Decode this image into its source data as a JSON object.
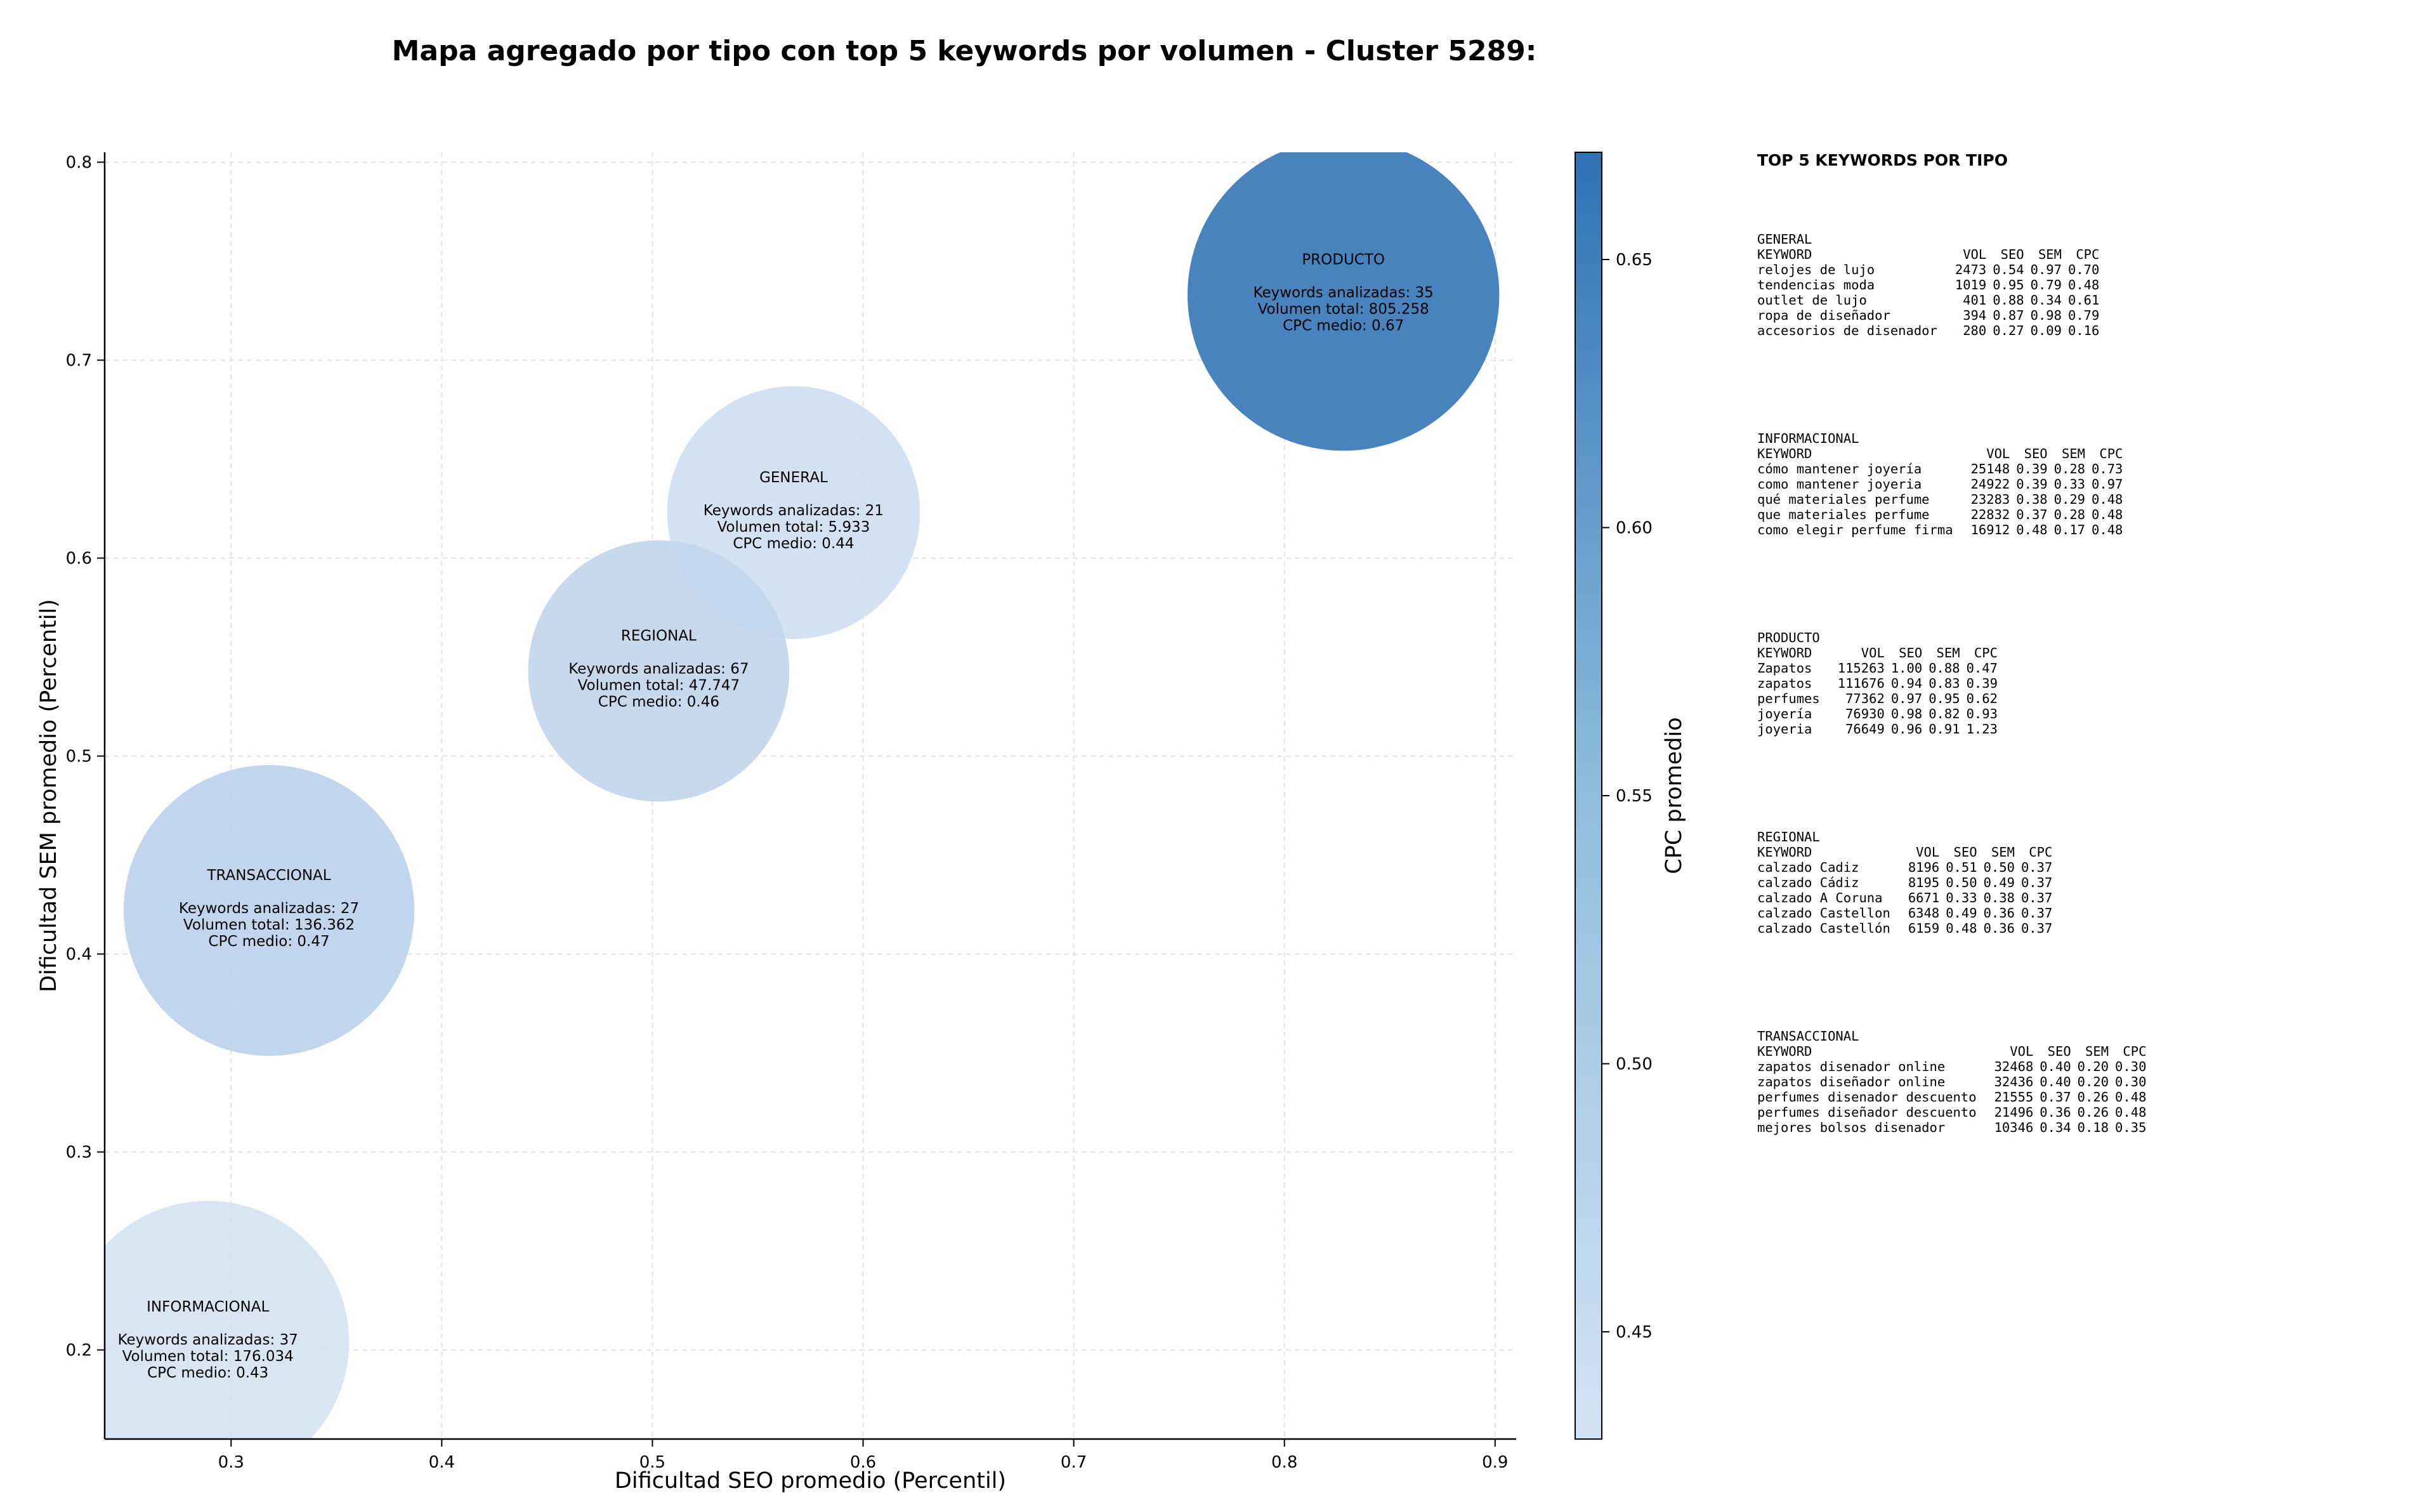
{
  "chart_data": {
    "type": "scatter",
    "title": "Mapa agregado por tipo con top 5 keywords por volumen - Cluster 5289:",
    "xlabel": "Dificultad SEO promedio (Percentil)",
    "ylabel": "Dificultad SEM promedio (Percentil)",
    "xlim": [
      0.24,
      0.91
    ],
    "ylim": [
      0.155,
      0.805
    ],
    "xticks": [
      "0.3",
      "0.4",
      "0.5",
      "0.6",
      "0.7",
      "0.8",
      "0.9"
    ],
    "yticks": [
      "0.2",
      "0.3",
      "0.4",
      "0.5",
      "0.6",
      "0.7",
      "0.8"
    ],
    "grid": true,
    "colorbar": {
      "label": "CPC promedio",
      "range": [
        0.43,
        0.67
      ],
      "ticks": [
        "0.45",
        "0.50",
        "0.55",
        "0.60",
        "0.65"
      ],
      "color_low": "#d3e3f3",
      "color_high": "#2f72b5"
    },
    "points": [
      {
        "name": "PRODUCTO",
        "x": 0.828,
        "y": 0.733,
        "keywords": "Keywords analizadas: 35",
        "volumen": "Volumen total: 805.258",
        "cpc_label": "CPC medio: 0.67",
        "cpc": 0.67,
        "radius": 0.074
      },
      {
        "name": "GENERAL",
        "x": 0.567,
        "y": 0.623,
        "keywords": "Keywords analizadas: 21",
        "volumen": "Volumen total: 5.933",
        "cpc_label": "CPC medio: 0.44",
        "cpc": 0.44,
        "radius": 0.06
      },
      {
        "name": "REGIONAL",
        "x": 0.503,
        "y": 0.543,
        "keywords": "Keywords analizadas: 67",
        "volumen": "Volumen total: 47.747",
        "cpc_label": "CPC medio: 0.46",
        "cpc": 0.46,
        "radius": 0.062
      },
      {
        "name": "TRANSACCIONAL",
        "x": 0.318,
        "y": 0.422,
        "keywords": "Keywords analizadas: 27",
        "volumen": "Volumen total: 136.362",
        "cpc_label": "CPC medio: 0.47",
        "cpc": 0.47,
        "radius": 0.069
      },
      {
        "name": "INFORMACIONAL",
        "x": 0.289,
        "y": 0.204,
        "keywords": "Keywords analizadas: 37",
        "volumen": "Volumen total: 176.034",
        "cpc_label": "CPC medio: 0.43",
        "cpc": 0.43,
        "radius": 0.067
      }
    ]
  },
  "panel": {
    "title": "TOP 5 KEYWORDS POR TIPO",
    "headers": [
      "KEYWORD",
      "VOL",
      "SEO",
      "SEM",
      "CPC"
    ],
    "groups": [
      {
        "name": "GENERAL",
        "rows": [
          [
            "relojes de lujo",
            "2473",
            "0.54",
            "0.97",
            "0.70"
          ],
          [
            "tendencias moda",
            "1019",
            "0.95",
            "0.79",
            "0.48"
          ],
          [
            "outlet de lujo",
            "401",
            "0.88",
            "0.34",
            "0.61"
          ],
          [
            "ropa de diseñador",
            "394",
            "0.87",
            "0.98",
            "0.79"
          ],
          [
            "accesorios de disenador",
            "280",
            "0.27",
            "0.09",
            "0.16"
          ]
        ]
      },
      {
        "name": "INFORMACIONAL",
        "rows": [
          [
            "cómo mantener joyería",
            "25148",
            "0.39",
            "0.28",
            "0.73"
          ],
          [
            "como mantener joyeria",
            "24922",
            "0.39",
            "0.33",
            "0.97"
          ],
          [
            "qué materiales perfume",
            "23283",
            "0.38",
            "0.29",
            "0.48"
          ],
          [
            "que materiales perfume",
            "22832",
            "0.37",
            "0.28",
            "0.48"
          ],
          [
            "como elegir perfume firma",
            "16912",
            "0.48",
            "0.17",
            "0.48"
          ]
        ]
      },
      {
        "name": "PRODUCTO",
        "rows": [
          [
            "Zapatos",
            "115263",
            "1.00",
            "0.88",
            "0.47"
          ],
          [
            "zapatos",
            "111676",
            "0.94",
            "0.83",
            "0.39"
          ],
          [
            "perfumes",
            "77362",
            "0.97",
            "0.95",
            "0.62"
          ],
          [
            "joyería",
            "76930",
            "0.98",
            "0.82",
            "0.93"
          ],
          [
            "joyeria",
            "76649",
            "0.96",
            "0.91",
            "1.23"
          ]
        ]
      },
      {
        "name": "REGIONAL",
        "rows": [
          [
            "calzado Cadiz",
            "8196",
            "0.51",
            "0.50",
            "0.37"
          ],
          [
            "calzado Cádiz",
            "8195",
            "0.50",
            "0.49",
            "0.37"
          ],
          [
            "calzado A Coruna",
            "6671",
            "0.33",
            "0.38",
            "0.37"
          ],
          [
            "calzado Castellon",
            "6348",
            "0.49",
            "0.36",
            "0.37"
          ],
          [
            "calzado Castellón",
            "6159",
            "0.48",
            "0.36",
            "0.37"
          ]
        ]
      },
      {
        "name": "TRANSACCIONAL",
        "rows": [
          [
            "zapatos disenador online",
            "32468",
            "0.40",
            "0.20",
            "0.30"
          ],
          [
            "zapatos diseñador online",
            "32436",
            "0.40",
            "0.20",
            "0.30"
          ],
          [
            "perfumes disenador descuento",
            "21555",
            "0.37",
            "0.26",
            "0.48"
          ],
          [
            "perfumes diseñador descuento",
            "21496",
            "0.36",
            "0.26",
            "0.48"
          ],
          [
            "mejores bolsos disenador",
            "10346",
            "0.34",
            "0.18",
            "0.35"
          ]
        ]
      }
    ]
  }
}
